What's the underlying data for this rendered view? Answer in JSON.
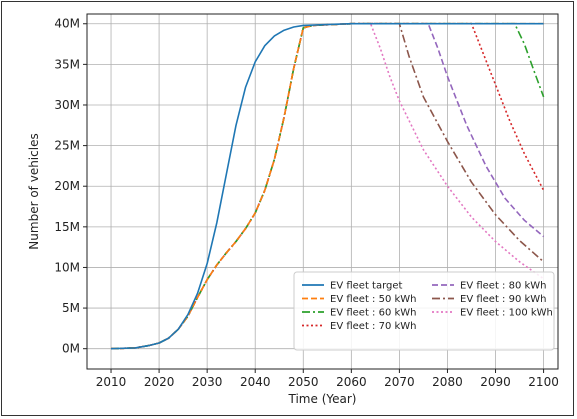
{
  "chart_data": {
    "type": "line",
    "title": "",
    "xlabel": "Time (Year)",
    "ylabel": "Number of vehicles",
    "xlim": [
      2005,
      2103
    ],
    "ylim": [
      -2.5,
      41.2
    ],
    "x_ticks": [
      2010,
      2020,
      2030,
      2040,
      2050,
      2060,
      2070,
      2080,
      2090,
      2100
    ],
    "x_tick_labels": [
      "2010",
      "2020",
      "2030",
      "2040",
      "2050",
      "2060",
      "2070",
      "2080",
      "2090",
      "2100"
    ],
    "y_ticks": [
      0,
      5,
      10,
      15,
      20,
      25,
      30,
      35,
      40
    ],
    "y_tick_labels": [
      "0M",
      "5M",
      "10M",
      "15M",
      "20M",
      "25M",
      "30M",
      "35M",
      "40M"
    ],
    "y_unit": "million vehicles",
    "grid": true,
    "legend_position": "lower-right",
    "series": [
      {
        "name": "EV fleet target",
        "color": "#1f77b4",
        "dash": "solid",
        "points": [
          [
            2010,
            0
          ],
          [
            2015,
            0.1
          ],
          [
            2018,
            0.4
          ],
          [
            2020,
            0.7
          ],
          [
            2022,
            1.3
          ],
          [
            2024,
            2.4
          ],
          [
            2026,
            4.2
          ],
          [
            2028,
            6.8
          ],
          [
            2030,
            10.5
          ],
          [
            2032,
            15.5
          ],
          [
            2034,
            21.5
          ],
          [
            2036,
            27.5
          ],
          [
            2038,
            32.2
          ],
          [
            2040,
            35.3
          ],
          [
            2042,
            37.3
          ],
          [
            2044,
            38.5
          ],
          [
            2046,
            39.2
          ],
          [
            2048,
            39.6
          ],
          [
            2050,
            39.8
          ],
          [
            2055,
            39.9
          ],
          [
            2060,
            40.0
          ],
          [
            2100,
            40.0
          ]
        ]
      },
      {
        "name": "EV fleet : 50 kWh",
        "color": "#ff7f0e",
        "dash": "dashed",
        "points": [
          [
            2010,
            0
          ],
          [
            2015,
            0.1
          ],
          [
            2018,
            0.4
          ],
          [
            2020,
            0.7
          ],
          [
            2022,
            1.3
          ],
          [
            2024,
            2.4
          ],
          [
            2026,
            4.0
          ],
          [
            2028,
            6.3
          ],
          [
            2030,
            8.5
          ],
          [
            2032,
            10.3
          ],
          [
            2034,
            11.8
          ],
          [
            2036,
            13.2
          ],
          [
            2038,
            14.8
          ],
          [
            2040,
            16.7
          ],
          [
            2042,
            19.5
          ],
          [
            2044,
            23.3
          ],
          [
            2046,
            28.5
          ],
          [
            2048,
            34.5
          ],
          [
            2050,
            39.5
          ],
          [
            2052,
            39.8
          ],
          [
            2060,
            40.0
          ],
          [
            2100,
            40.0
          ]
        ]
      },
      {
        "name": "EV fleet : 60 kWh",
        "color": "#2ca02c",
        "dash": "dashdot",
        "points": [
          [
            2010,
            0
          ],
          [
            2015,
            0.1
          ],
          [
            2018,
            0.4
          ],
          [
            2020,
            0.7
          ],
          [
            2022,
            1.3
          ],
          [
            2024,
            2.4
          ],
          [
            2026,
            4.0
          ],
          [
            2028,
            6.3
          ],
          [
            2030,
            8.5
          ],
          [
            2032,
            10.3
          ],
          [
            2034,
            11.8
          ],
          [
            2036,
            13.2
          ],
          [
            2038,
            14.8
          ],
          [
            2040,
            16.7
          ],
          [
            2042,
            19.5
          ],
          [
            2044,
            23.3
          ],
          [
            2046,
            28.5
          ],
          [
            2048,
            34.5
          ],
          [
            2050,
            39.5
          ],
          [
            2052,
            39.8
          ],
          [
            2060,
            40.0
          ],
          [
            2094,
            40.0
          ],
          [
            2096,
            37.5
          ],
          [
            2098,
            34.2
          ],
          [
            2100,
            31.0
          ]
        ]
      },
      {
        "name": "EV fleet : 70 kWh",
        "color": "#d62728",
        "dash": "dotted",
        "points": [
          [
            2010,
            0
          ],
          [
            2015,
            0.1
          ],
          [
            2018,
            0.4
          ],
          [
            2020,
            0.7
          ],
          [
            2022,
            1.3
          ],
          [
            2024,
            2.4
          ],
          [
            2026,
            4.0
          ],
          [
            2028,
            6.3
          ],
          [
            2030,
            8.5
          ],
          [
            2032,
            10.3
          ],
          [
            2034,
            11.8
          ],
          [
            2036,
            13.2
          ],
          [
            2038,
            14.8
          ],
          [
            2040,
            16.7
          ],
          [
            2042,
            19.5
          ],
          [
            2044,
            23.3
          ],
          [
            2046,
            28.5
          ],
          [
            2048,
            34.5
          ],
          [
            2050,
            39.5
          ],
          [
            2052,
            39.8
          ],
          [
            2060,
            40.0
          ],
          [
            2085,
            40.0
          ],
          [
            2087,
            37.0
          ],
          [
            2090,
            32.5
          ],
          [
            2093,
            28.0
          ],
          [
            2096,
            24.0
          ],
          [
            2100,
            19.5
          ]
        ]
      },
      {
        "name": "EV fleet : 80 kWh",
        "color": "#9467bd",
        "dash": "dashed",
        "points": [
          [
            2010,
            0
          ],
          [
            2015,
            0.1
          ],
          [
            2018,
            0.4
          ],
          [
            2020,
            0.7
          ],
          [
            2022,
            1.3
          ],
          [
            2024,
            2.4
          ],
          [
            2026,
            4.0
          ],
          [
            2028,
            6.3
          ],
          [
            2030,
            8.5
          ],
          [
            2032,
            10.3
          ],
          [
            2034,
            11.8
          ],
          [
            2036,
            13.2
          ],
          [
            2038,
            14.8
          ],
          [
            2040,
            16.7
          ],
          [
            2042,
            19.5
          ],
          [
            2044,
            23.3
          ],
          [
            2046,
            28.5
          ],
          [
            2048,
            34.5
          ],
          [
            2050,
            39.5
          ],
          [
            2052,
            39.8
          ],
          [
            2060,
            40.0
          ],
          [
            2076,
            40.0
          ],
          [
            2078,
            37.0
          ],
          [
            2080,
            33.5
          ],
          [
            2084,
            27.5
          ],
          [
            2088,
            22.5
          ],
          [
            2092,
            18.5
          ],
          [
            2096,
            15.8
          ],
          [
            2100,
            13.8
          ]
        ]
      },
      {
        "name": "EV fleet : 90 kWh",
        "color": "#8c564b",
        "dash": "dashdot",
        "points": [
          [
            2010,
            0
          ],
          [
            2015,
            0.1
          ],
          [
            2018,
            0.4
          ],
          [
            2020,
            0.7
          ],
          [
            2022,
            1.3
          ],
          [
            2024,
            2.4
          ],
          [
            2026,
            4.0
          ],
          [
            2028,
            6.3
          ],
          [
            2030,
            8.5
          ],
          [
            2032,
            10.3
          ],
          [
            2034,
            11.8
          ],
          [
            2036,
            13.2
          ],
          [
            2038,
            14.8
          ],
          [
            2040,
            16.7
          ],
          [
            2042,
            19.5
          ],
          [
            2044,
            23.3
          ],
          [
            2046,
            28.5
          ],
          [
            2048,
            34.5
          ],
          [
            2050,
            39.5
          ],
          [
            2052,
            39.8
          ],
          [
            2060,
            40.0
          ],
          [
            2070,
            40.0
          ],
          [
            2072,
            36.0
          ],
          [
            2075,
            31.0
          ],
          [
            2080,
            25.5
          ],
          [
            2085,
            20.5
          ],
          [
            2090,
            16.5
          ],
          [
            2095,
            13.3
          ],
          [
            2100,
            10.7
          ]
        ]
      },
      {
        "name": "EV fleet : 100 kWh",
        "color": "#e377c2",
        "dash": "dotted",
        "points": [
          [
            2010,
            0
          ],
          [
            2015,
            0.1
          ],
          [
            2018,
            0.4
          ],
          [
            2020,
            0.7
          ],
          [
            2022,
            1.3
          ],
          [
            2024,
            2.4
          ],
          [
            2026,
            4.0
          ],
          [
            2028,
            6.3
          ],
          [
            2030,
            8.5
          ],
          [
            2032,
            10.3
          ],
          [
            2034,
            11.8
          ],
          [
            2036,
            13.2
          ],
          [
            2038,
            14.8
          ],
          [
            2040,
            16.7
          ],
          [
            2042,
            19.5
          ],
          [
            2044,
            23.3
          ],
          [
            2046,
            28.5
          ],
          [
            2048,
            34.5
          ],
          [
            2050,
            39.5
          ],
          [
            2052,
            39.8
          ],
          [
            2060,
            40.0
          ],
          [
            2064,
            40.0
          ],
          [
            2066,
            37.0
          ],
          [
            2068,
            33.5
          ],
          [
            2070,
            30.5
          ],
          [
            2075,
            24.5
          ],
          [
            2080,
            20.0
          ],
          [
            2085,
            16.2
          ],
          [
            2090,
            13.2
          ],
          [
            2095,
            10.7
          ],
          [
            2100,
            8.6
          ]
        ]
      }
    ]
  }
}
